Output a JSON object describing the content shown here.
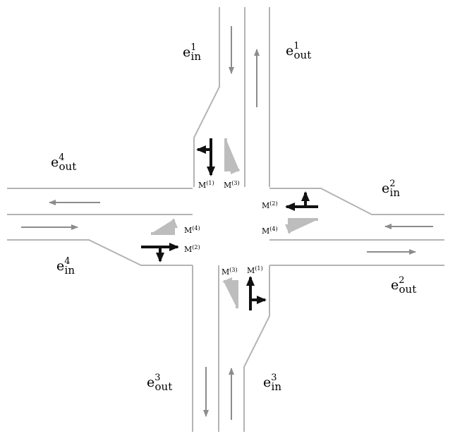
{
  "edges": {
    "e1_in": {
      "base": "e",
      "sub": "in",
      "sup": "1"
    },
    "e1_out": {
      "base": "e",
      "sub": "out",
      "sup": "1"
    },
    "e2_in": {
      "base": "e",
      "sub": "in",
      "sup": "2"
    },
    "e2_out": {
      "base": "e",
      "sub": "out",
      "sup": "2"
    },
    "e3_in": {
      "base": "e",
      "sub": "in",
      "sup": "3"
    },
    "e3_out": {
      "base": "e",
      "sub": "out",
      "sup": "3"
    },
    "e4_in": {
      "base": "e",
      "sub": "in",
      "sup": "4"
    },
    "e4_out": {
      "base": "e",
      "sub": "out",
      "sup": "4"
    }
  },
  "movements": {
    "north_m1": {
      "base": "M",
      "sup": "(1)"
    },
    "north_m3": {
      "base": "M",
      "sup": "(3)"
    },
    "east_m2": {
      "base": "M",
      "sup": "(2)"
    },
    "east_m4": {
      "base": "M",
      "sup": "(4)"
    },
    "west_m4": {
      "base": "M",
      "sup": "(4)"
    },
    "west_m2": {
      "base": "M",
      "sup": "(2)"
    },
    "south_m3": {
      "base": "M",
      "sup": "(3)"
    },
    "south_m1": {
      "base": "M",
      "sup": "(1)"
    }
  },
  "colors": {
    "road": "#b4b4b4",
    "flow_arrow": "#8c8c8c",
    "movement_dark": "#111111",
    "movement_light": "#bdbdbd"
  }
}
